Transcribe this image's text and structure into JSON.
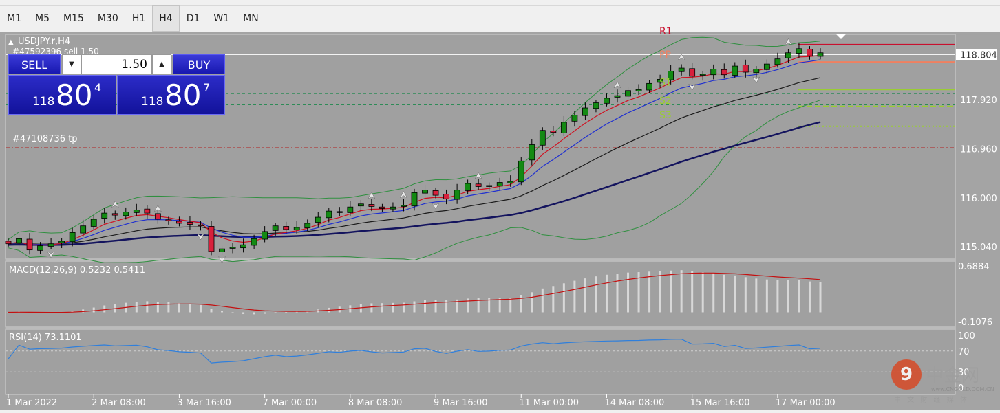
{
  "toolbar": {
    "timeframes": [
      "M1",
      "M5",
      "M15",
      "M30",
      "H1",
      "H4",
      "D1",
      "W1",
      "MN"
    ],
    "active": "H4"
  },
  "chart": {
    "symbol_title": "USDJPY.r,H4",
    "order_label": "#47592396 sell 1.50",
    "tp_label": "#47108736 tp",
    "current_price": "118.804",
    "price_ticks": [
      "118.804",
      "117.920",
      "116.960",
      "116.000",
      "115.040"
    ],
    "date_ticks": [
      "1 Mar 2022",
      "2 Mar 08:00",
      "3 Mar 16:00",
      "7 Mar 00:00",
      "8 Mar 08:00",
      "9 Mar 16:00",
      "11 Mar 00:00",
      "14 Mar 08:00",
      "15 Mar 16:00",
      "17 Mar 00:00"
    ],
    "pivots": [
      {
        "name": "R1",
        "color": "#c8102e"
      },
      {
        "name": "PP",
        "color": "#f08060"
      },
      {
        "name": "S1",
        "color": "#9acd32"
      },
      {
        "name": "S2",
        "color": "#9acd32"
      },
      {
        "name": "S3",
        "color": "#9acd32"
      }
    ]
  },
  "one_click": {
    "sell_label": "SELL",
    "buy_label": "BUY",
    "volume": "1.50",
    "sell_price": {
      "small": "118",
      "big": "80",
      "sup": "4"
    },
    "buy_price": {
      "small": "118",
      "big": "80",
      "sup": "7"
    }
  },
  "macd": {
    "title": "MACD(12,26,9) 0.5232 0.5411",
    "ticks": [
      "0.6884",
      "-0.1076"
    ]
  },
  "rsi": {
    "title": "RSI(14) 73.1101",
    "ticks": [
      "100",
      "70",
      "30",
      "0"
    ]
  },
  "watermark": {
    "name": "中金网",
    "url": "www.CNGOLD.COM.CN",
    "sub": "中 文 财 经 媒 体"
  },
  "icons": {
    "spin_down": "▼",
    "spin_up": "▲",
    "title_marker": "▲"
  },
  "chart_data": {
    "type": "candlestick",
    "symbol": "USDJPY.r",
    "timeframe": "H4",
    "x": [
      "1 Mar 2022",
      "2 Mar 08:00",
      "3 Mar 16:00",
      "7 Mar 00:00",
      "8 Mar 08:00",
      "9 Mar 16:00",
      "11 Mar 00:00",
      "14 Mar 08:00",
      "15 Mar 16:00",
      "17 Mar 00:00"
    ],
    "ylim": [
      114.8,
      119.2
    ],
    "close_path": [
      115.1,
      115.2,
      114.98,
      115.06,
      115.1,
      115.15,
      115.32,
      115.45,
      115.58,
      115.7,
      115.66,
      115.72,
      115.76,
      115.7,
      115.58,
      115.55,
      115.5,
      115.48,
      115.45,
      114.95,
      115.0,
      115.03,
      115.08,
      115.2,
      115.34,
      115.45,
      115.38,
      115.42,
      115.5,
      115.62,
      115.74,
      115.72,
      115.82,
      115.88,
      115.83,
      115.79,
      115.82,
      115.85,
      116.1,
      116.15,
      116.05,
      115.98,
      116.15,
      116.28,
      116.22,
      116.24,
      116.3,
      116.32,
      116.72,
      117.04,
      117.32,
      117.28,
      117.48,
      117.62,
      117.76,
      117.86,
      117.95,
      118.0,
      118.1,
      118.12,
      118.24,
      118.32,
      118.48,
      118.54,
      118.38,
      118.42,
      118.52,
      118.41,
      118.58,
      118.46,
      118.52,
      118.62,
      118.72,
      118.84,
      118.92,
      118.78,
      118.84
    ],
    "last": 118.804
  }
}
